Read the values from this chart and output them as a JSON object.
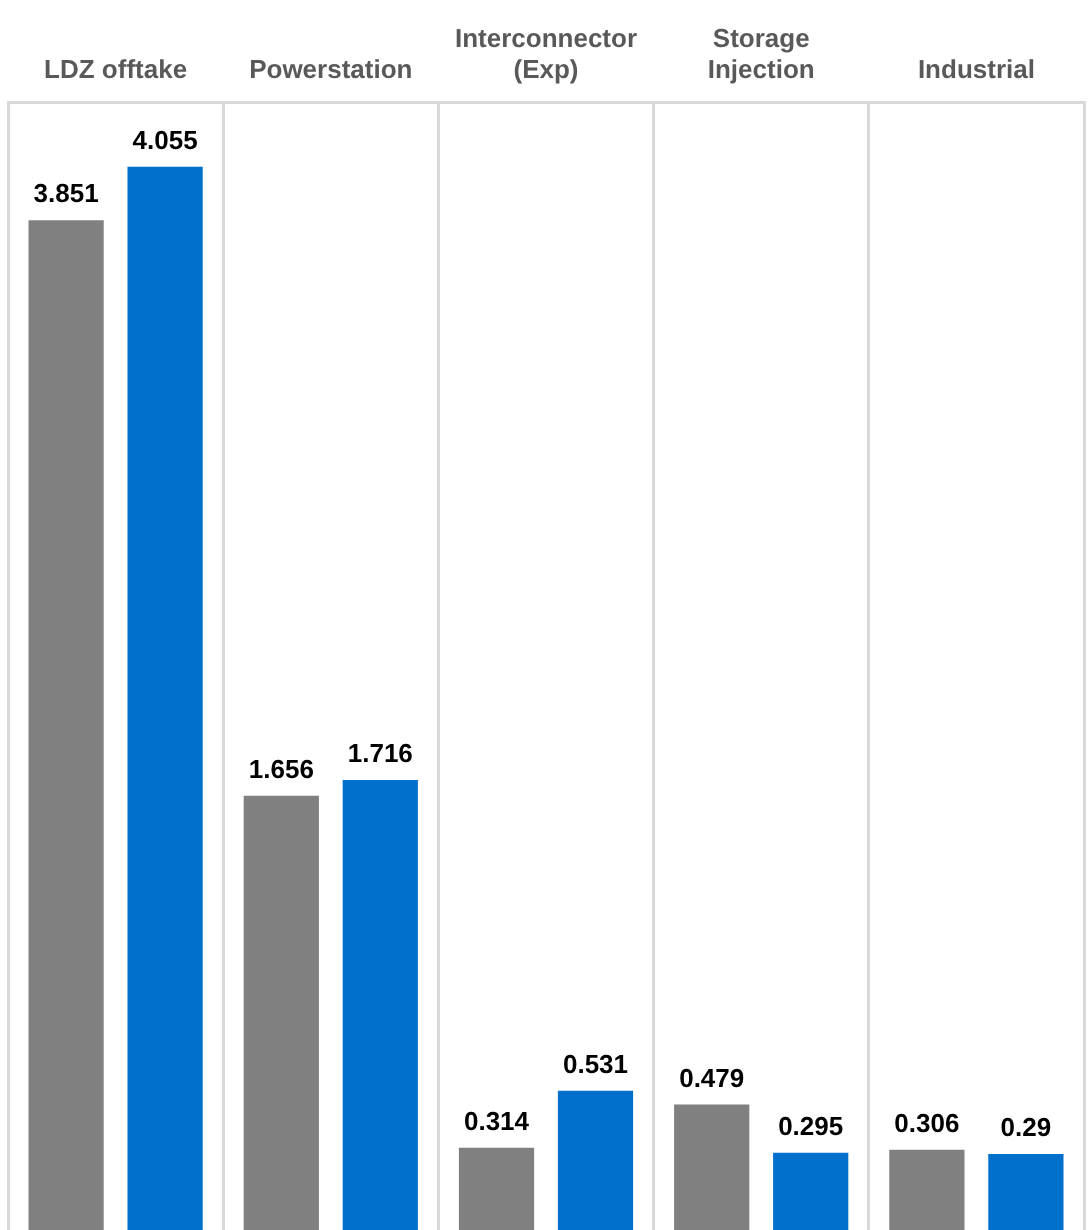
{
  "chart_data": {
    "type": "bar",
    "categories": [
      "LDZ offtake",
      "Powerstation",
      "Interconnector (Exp)",
      "Storage Injection",
      "Industrial"
    ],
    "series": [
      {
        "color": "#808080",
        "values": [
          3.851,
          1.656,
          0.314,
          0.479,
          0.306
        ]
      },
      {
        "color": "#0070cc",
        "values": [
          4.055,
          1.716,
          0.531,
          0.295,
          0.29
        ]
      }
    ],
    "ylim": [
      0,
      4.3
    ],
    "grid": "x",
    "legend": false,
    "tick_labels": "x",
    "data_labels": true
  }
}
